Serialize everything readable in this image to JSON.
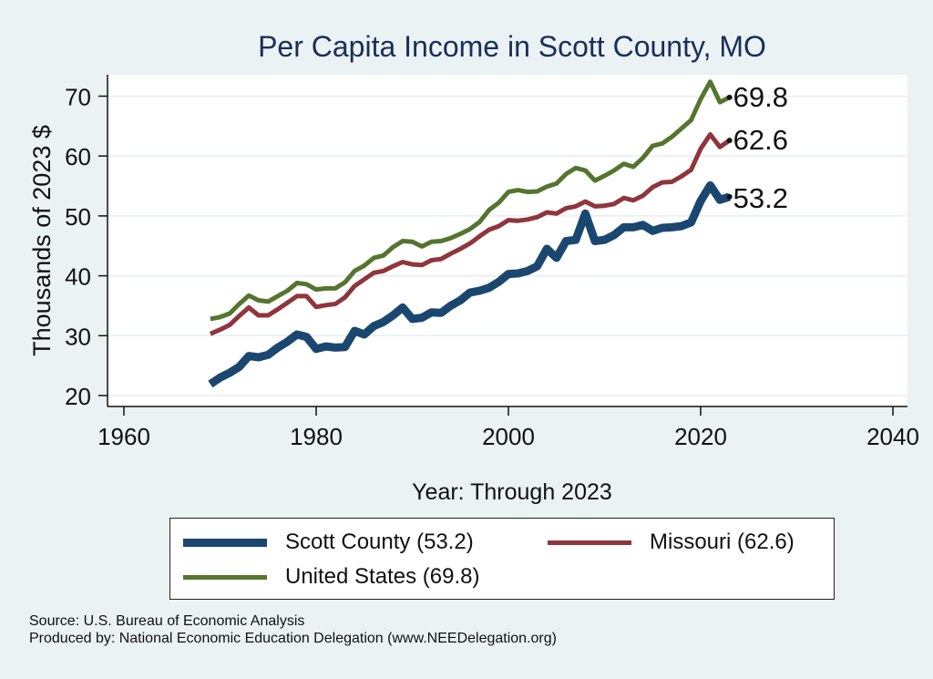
{
  "chart_data": {
    "type": "line",
    "title": "Per Capita Income in Scott County, MO",
    "xlabel": "Year: Through 2023",
    "ylabel": "Thousands of 2023 $",
    "xlim": [
      1960,
      2040
    ],
    "ylim": [
      20,
      75
    ],
    "xticks": [
      1960,
      1980,
      2000,
      2020,
      2040
    ],
    "yticks": [
      20,
      30,
      40,
      50,
      60,
      70
    ],
    "grid": true,
    "legend_position": "bottom",
    "x": [
      1969,
      1970,
      1971,
      1972,
      1973,
      1974,
      1975,
      1976,
      1977,
      1978,
      1979,
      1980,
      1981,
      1982,
      1983,
      1984,
      1985,
      1986,
      1987,
      1988,
      1989,
      1990,
      1991,
      1992,
      1993,
      1994,
      1995,
      1996,
      1997,
      1998,
      1999,
      2000,
      2001,
      2002,
      2003,
      2004,
      2005,
      2006,
      2007,
      2008,
      2009,
      2010,
      2011,
      2012,
      2013,
      2014,
      2015,
      2016,
      2017,
      2018,
      2019,
      2020,
      2021,
      2022,
      2023
    ],
    "series": [
      {
        "name": "Scott County (53.2)",
        "color": "#1a476f",
        "end_label": "53.2",
        "values": [
          21.9,
          23.0,
          23.8,
          24.8,
          26.6,
          26.4,
          26.8,
          28.0,
          29.0,
          30.2,
          29.8,
          27.8,
          28.2,
          28.0,
          28.1,
          30.8,
          30.2,
          31.6,
          32.3,
          33.4,
          34.7,
          32.8,
          33.0,
          33.9,
          33.8,
          35.0,
          35.9,
          37.2,
          37.5,
          38.0,
          39.0,
          40.3,
          40.4,
          40.8,
          41.6,
          44.5,
          43.0,
          45.8,
          46.0,
          50.4,
          45.8,
          46.0,
          46.8,
          48.1,
          48.1,
          48.5,
          47.5,
          48.0,
          48.1,
          48.3,
          48.9,
          52.5,
          55.1,
          52.7,
          53.2
        ]
      },
      {
        "name": "Missouri (62.6)",
        "color": "#90353b",
        "end_label": "62.6",
        "values": [
          30.3,
          31.0,
          31.8,
          33.3,
          34.7,
          33.4,
          33.4,
          34.4,
          35.5,
          36.6,
          36.6,
          34.8,
          35.1,
          35.3,
          36.4,
          38.3,
          39.4,
          40.5,
          40.8,
          41.6,
          42.3,
          41.9,
          41.8,
          42.6,
          42.8,
          43.7,
          44.5,
          45.4,
          46.6,
          47.7,
          48.3,
          49.3,
          49.2,
          49.4,
          49.8,
          50.6,
          50.4,
          51.3,
          51.6,
          52.4,
          51.6,
          51.7,
          52.0,
          53.0,
          52.6,
          53.4,
          54.8,
          55.6,
          55.7,
          56.6,
          57.7,
          61.2,
          63.6,
          61.5,
          62.6
        ]
      },
      {
        "name": "United States (69.8)",
        "color": "#55752f",
        "end_label": "69.8",
        "values": [
          32.8,
          33.1,
          33.7,
          35.3,
          36.7,
          35.9,
          35.7,
          36.6,
          37.5,
          38.8,
          38.6,
          37.7,
          37.9,
          37.9,
          38.9,
          40.8,
          41.7,
          43.0,
          43.4,
          44.8,
          45.8,
          45.7,
          44.9,
          45.7,
          45.8,
          46.3,
          47.0,
          47.8,
          49.0,
          51.0,
          52.2,
          54.0,
          54.3,
          54.0,
          54.1,
          54.9,
          55.4,
          57.0,
          58.0,
          57.6,
          55.9,
          56.7,
          57.6,
          58.7,
          58.2,
          59.7,
          61.7,
          62.1,
          63.2,
          64.6,
          66.0,
          69.5,
          72.4,
          69.0,
          69.8
        ]
      }
    ]
  },
  "legend": [
    {
      "label": "Scott County (53.2)",
      "color": "#1a476f"
    },
    {
      "label": "Missouri (62.6)",
      "color": "#90353b"
    },
    {
      "label": "United States (69.8)",
      "color": "#55752f"
    }
  ],
  "footer": {
    "source": "Source: U.S. Bureau of Economic Analysis",
    "produced": "Produced by: National Economic Education Delegation (www.NEEDelegation.org)"
  }
}
